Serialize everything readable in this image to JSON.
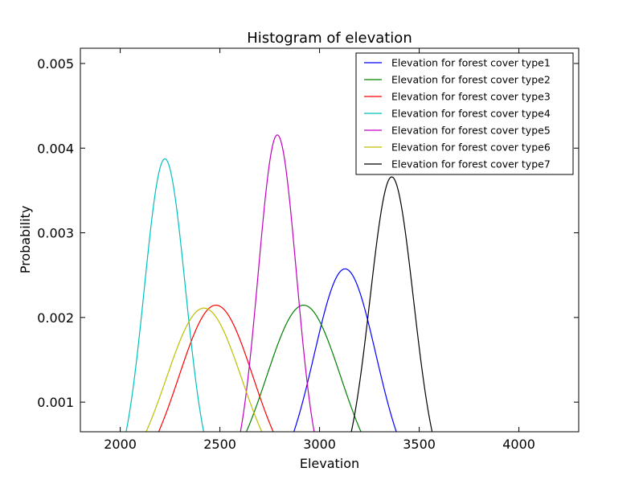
{
  "chart_data": {
    "type": "line",
    "title": "Histogram of elevation",
    "xlabel": "Elevation",
    "ylabel": "Probability",
    "xlim": [
      1800,
      4300
    ],
    "ylim": [
      0.00065,
      0.00518
    ],
    "xticks": [
      2000,
      2500,
      3000,
      3500,
      4000
    ],
    "xtick_labels": [
      "2000",
      "2500",
      "3000",
      "3500",
      "4000"
    ],
    "yticks": [
      0.001,
      0.002,
      0.003,
      0.004,
      0.005
    ],
    "ytick_labels": [
      "0.001",
      "0.002",
      "0.003",
      "0.004",
      "0.005"
    ],
    "grid": false,
    "legend_position": "top-right",
    "series": [
      {
        "name": "Elevation for forest cover type1",
        "color": "#0000ff",
        "mean": 3128,
        "std": 155
      },
      {
        "name": "Elevation for forest cover type2",
        "color": "#008000",
        "mean": 2920,
        "std": 186
      },
      {
        "name": "Elevation for forest cover type3",
        "color": "#ff0000",
        "mean": 2480,
        "std": 186
      },
      {
        "name": "Elevation for forest cover type4",
        "color": "#00bfbf",
        "mean": 2224,
        "std": 103
      },
      {
        "name": "Elevation for forest cover type5",
        "color": "#bf00bf",
        "mean": 2788,
        "std": 96
      },
      {
        "name": "Elevation for forest cover type6",
        "color": "#bfbf00",
        "mean": 2420,
        "std": 189
      },
      {
        "name": "Elevation for forest cover type7",
        "color": "#000000",
        "mean": 3362,
        "std": 109
      }
    ]
  }
}
